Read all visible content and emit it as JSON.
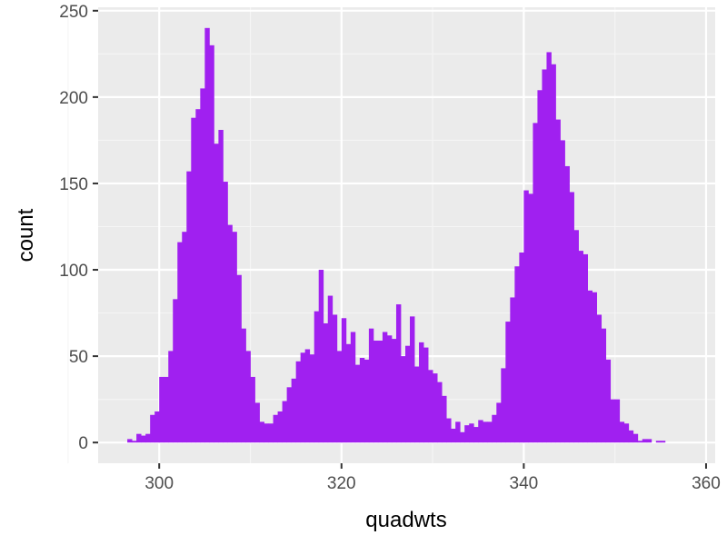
{
  "chart_data": {
    "type": "bar",
    "xlabel": "quadwts",
    "ylabel": "count",
    "xlim": [
      293.3,
      361.0
    ],
    "ylim": [
      -12,
      252
    ],
    "x_ticks": [
      300,
      320,
      340,
      360
    ],
    "x_tick_labels": [
      "300",
      "320",
      "340",
      "360"
    ],
    "y_ticks": [
      0,
      50,
      100,
      150,
      200,
      250
    ],
    "y_tick_labels": [
      "0",
      "50",
      "100",
      "150",
      "200",
      "250"
    ],
    "grid": true,
    "bin_width": 0.5,
    "bins_start": 296.5,
    "values": [
      2,
      1,
      5,
      4,
      5,
      16,
      18,
      38,
      38,
      53,
      83,
      116,
      122,
      157,
      188,
      193,
      205,
      240,
      230,
      173,
      181,
      151,
      126,
      122,
      97,
      66,
      53,
      38,
      23,
      12,
      11,
      11,
      16,
      18,
      24,
      32,
      37,
      47,
      52,
      54,
      51,
      76,
      100,
      69,
      85,
      74,
      53,
      72,
      57,
      64,
      45,
      49,
      48,
      66,
      59,
      59,
      64,
      62,
      60,
      80,
      50,
      56,
      73,
      44,
      58,
      55,
      42,
      40,
      35,
      27,
      14,
      8,
      12,
      6,
      10,
      11,
      9,
      13,
      12,
      12,
      16,
      23,
      43,
      70,
      84,
      102,
      110,
      146,
      144,
      185,
      204,
      216,
      226,
      219,
      187,
      175,
      160,
      145,
      123,
      111,
      109,
      88,
      87,
      74,
      66,
      48,
      25,
      25,
      12,
      11,
      7,
      5,
      1,
      2,
      2,
      0,
      1,
      1
    ],
    "colors": {
      "bar": "#a020f0",
      "panel": "#ebebeb",
      "grid_major": "#ffffff",
      "grid_minor": "#f5f5f5",
      "tick": "#333333"
    }
  }
}
